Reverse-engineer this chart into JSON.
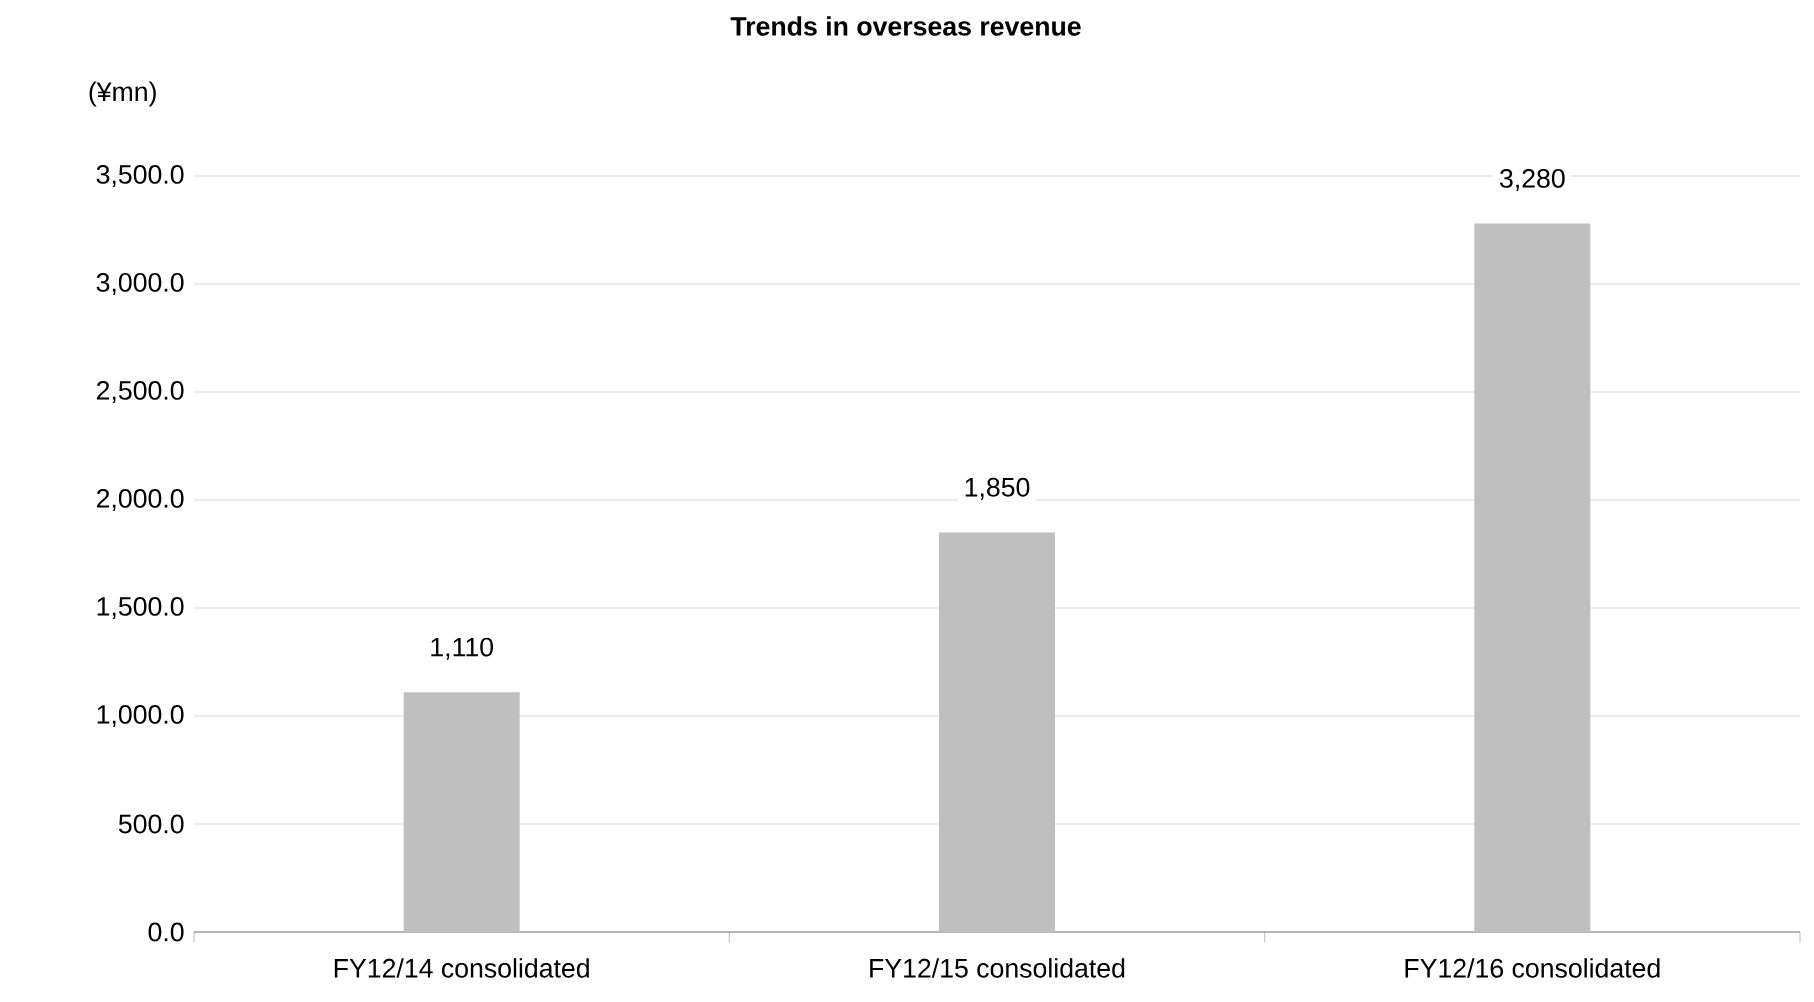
{
  "chart_data": {
    "type": "bar",
    "title": "Trends in overseas revenue",
    "ylabel": "(¥mn)",
    "categories": [
      "FY12/14 consolidated",
      "FY12/15 consolidated",
      "FY12/16 consolidated"
    ],
    "values": [
      1110,
      1850,
      3280
    ],
    "value_labels": [
      "1,110",
      "1,850",
      "3,280"
    ],
    "color": "#bfbfbf",
    "ylim": [
      0,
      3500
    ],
    "yticks": [
      {
        "value": 0,
        "label": "0.0"
      },
      {
        "value": 500,
        "label": "500.0"
      },
      {
        "value": 1000,
        "label": "1,000.0"
      },
      {
        "value": 1500,
        "label": "1,500.0"
      },
      {
        "value": 2000,
        "label": "2,000.0"
      },
      {
        "value": 2500,
        "label": "2,500.0"
      },
      {
        "value": 3000,
        "label": "3,000.0"
      },
      {
        "value": 3500,
        "label": "3,500.0"
      }
    ],
    "grid": "y"
  }
}
